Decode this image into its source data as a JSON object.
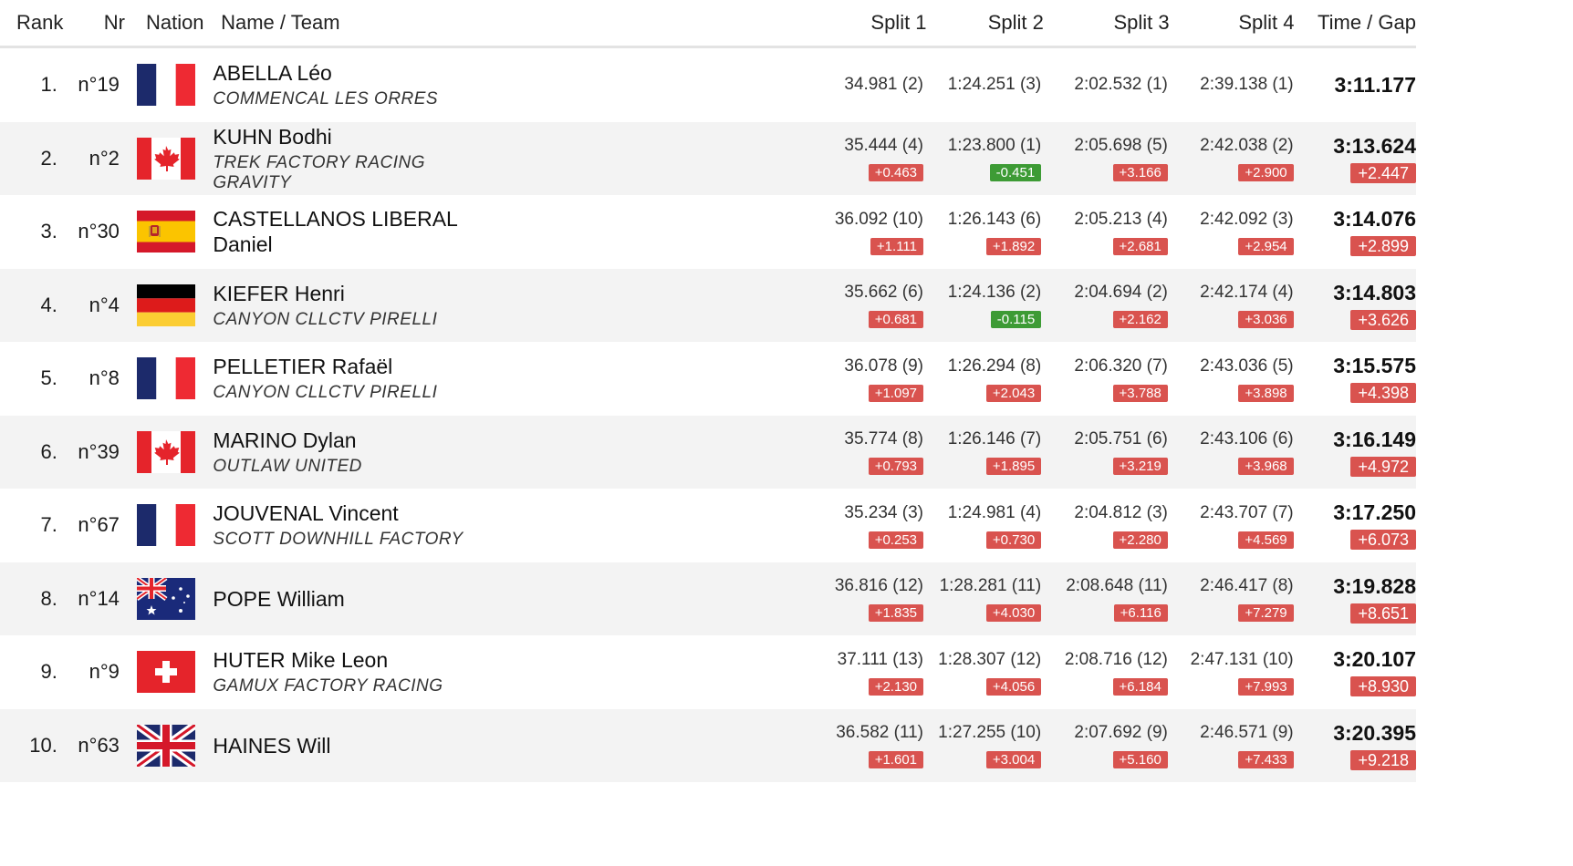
{
  "headers": {
    "rank": "Rank",
    "nr": "Nr",
    "nation": "Nation",
    "name_team": "Name / Team",
    "split1": "Split 1",
    "split2": "Split 2",
    "split3": "Split 3",
    "split4": "Split 4",
    "time_gap": "Time / Gap"
  },
  "colors": {
    "gap_positive": "#d9534f",
    "gap_negative": "#3d9b35",
    "row_alt": "#f3f3f3"
  },
  "rows": [
    {
      "rank": "1.",
      "nr": "n°19",
      "nation": "flag-france",
      "name": "ABELLA Léo",
      "team": "COMMENCAL LES ORRES",
      "s1": "34.981 (2)",
      "s1_gap": "",
      "s2": "1:24.251 (3)",
      "s2_gap": "",
      "s3": "2:02.532 (1)",
      "s3_gap": "",
      "s4": "2:39.138 (1)",
      "s4_gap": "",
      "time": "3:11.177",
      "gap": ""
    },
    {
      "rank": "2.",
      "nr": "n°2",
      "nation": "flag-canada",
      "name": "KUHN Bodhi",
      "team": "TREK FACTORY RACING GRAVITY",
      "s1": "35.444 (4)",
      "s1_gap": "+0.463",
      "s2": "1:23.800 (1)",
      "s2_gap": "-0.451",
      "s3": "2:05.698 (5)",
      "s3_gap": "+3.166",
      "s4": "2:42.038 (2)",
      "s4_gap": "+2.900",
      "time": "3:13.624",
      "gap": "+2.447"
    },
    {
      "rank": "3.",
      "nr": "n°30",
      "nation": "flag-spain",
      "name": "CASTELLANOS LIBERAL Daniel",
      "team": "",
      "s1": "36.092 (10)",
      "s1_gap": "+1.111",
      "s2": "1:26.143 (6)",
      "s2_gap": "+1.892",
      "s3": "2:05.213 (4)",
      "s3_gap": "+2.681",
      "s4": "2:42.092 (3)",
      "s4_gap": "+2.954",
      "time": "3:14.076",
      "gap": "+2.899"
    },
    {
      "rank": "4.",
      "nr": "n°4",
      "nation": "flag-germany",
      "name": "KIEFER Henri",
      "team": "CANYON CLLCTV PIRELLI",
      "s1": "35.662 (6)",
      "s1_gap": "+0.681",
      "s2": "1:24.136 (2)",
      "s2_gap": "-0.115",
      "s3": "2:04.694 (2)",
      "s3_gap": "+2.162",
      "s4": "2:42.174 (4)",
      "s4_gap": "+3.036",
      "time": "3:14.803",
      "gap": "+3.626"
    },
    {
      "rank": "5.",
      "nr": "n°8",
      "nation": "flag-france",
      "name": "PELLETIER Rafaël",
      "team": "CANYON CLLCTV PIRELLI",
      "s1": "36.078 (9)",
      "s1_gap": "+1.097",
      "s2": "1:26.294 (8)",
      "s2_gap": "+2.043",
      "s3": "2:06.320 (7)",
      "s3_gap": "+3.788",
      "s4": "2:43.036 (5)",
      "s4_gap": "+3.898",
      "time": "3:15.575",
      "gap": "+4.398"
    },
    {
      "rank": "6.",
      "nr": "n°39",
      "nation": "flag-canada",
      "name": "MARINO Dylan",
      "team": "OUTLAW UNITED",
      "s1": "35.774 (8)",
      "s1_gap": "+0.793",
      "s2": "1:26.146 (7)",
      "s2_gap": "+1.895",
      "s3": "2:05.751 (6)",
      "s3_gap": "+3.219",
      "s4": "2:43.106 (6)",
      "s4_gap": "+3.968",
      "time": "3:16.149",
      "gap": "+4.972"
    },
    {
      "rank": "7.",
      "nr": "n°67",
      "nation": "flag-france",
      "name": "JOUVENAL Vincent",
      "team": "SCOTT DOWNHILL FACTORY",
      "s1": "35.234 (3)",
      "s1_gap": "+0.253",
      "s2": "1:24.981 (4)",
      "s2_gap": "+0.730",
      "s3": "2:04.812 (3)",
      "s3_gap": "+2.280",
      "s4": "2:43.707 (7)",
      "s4_gap": "+4.569",
      "time": "3:17.250",
      "gap": "+6.073"
    },
    {
      "rank": "8.",
      "nr": "n°14",
      "nation": "flag-australia",
      "name": "POPE William",
      "team": "",
      "s1": "36.816 (12)",
      "s1_gap": "+1.835",
      "s2": "1:28.281 (11)",
      "s2_gap": "+4.030",
      "s3": "2:08.648 (11)",
      "s3_gap": "+6.116",
      "s4": "2:46.417 (8)",
      "s4_gap": "+7.279",
      "time": "3:19.828",
      "gap": "+8.651"
    },
    {
      "rank": "9.",
      "nr": "n°9",
      "nation": "flag-switzerland",
      "name": "HUTER Mike Leon",
      "team": "GAMUX FACTORY RACING",
      "s1": "37.111 (13)",
      "s1_gap": "+2.130",
      "s2": "1:28.307 (12)",
      "s2_gap": "+4.056",
      "s3": "2:08.716 (12)",
      "s3_gap": "+6.184",
      "s4": "2:47.131 (10)",
      "s4_gap": "+7.993",
      "time": "3:20.107",
      "gap": "+8.930"
    },
    {
      "rank": "10.",
      "nr": "n°63",
      "nation": "flag-great-britain",
      "name": "HAINES Will",
      "team": "",
      "s1": "36.582 (11)",
      "s1_gap": "+1.601",
      "s2": "1:27.255 (10)",
      "s2_gap": "+3.004",
      "s3": "2:07.692 (9)",
      "s3_gap": "+5.160",
      "s4": "2:46.571 (9)",
      "s4_gap": "+7.433",
      "time": "3:20.395",
      "gap": "+9.218"
    }
  ]
}
